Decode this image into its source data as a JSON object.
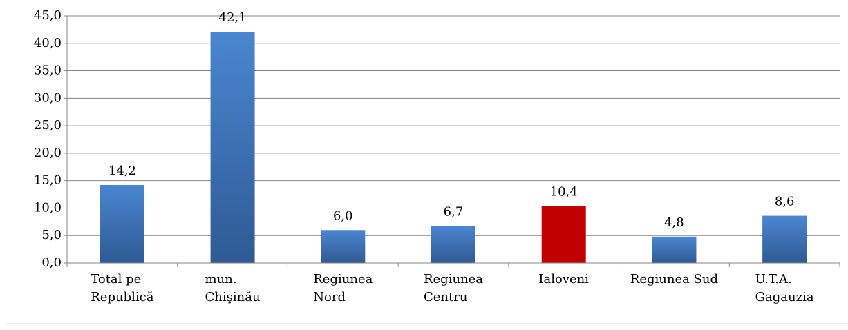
{
  "chart_data": {
    "type": "bar",
    "categories": [
      "Total pe\nRepublică",
      "mun.\nChişinău",
      "Regiunea\nNord",
      "Regiunea\nCentru",
      "Ialoveni",
      "Regiunea Sud",
      "U.T.A.\nGagauzia"
    ],
    "values": [
      14.2,
      42.1,
      6.0,
      6.7,
      10.4,
      4.8,
      8.6
    ],
    "value_labels": [
      "14,2",
      "42,1",
      "6,0",
      "6,7",
      "10,4",
      "4,8",
      "8,6"
    ],
    "colors": [
      "#3d6fb0",
      "#3d6fb0",
      "#3d6fb0",
      "#3d6fb0",
      "#c00000",
      "#3d6fb0",
      "#3d6fb0"
    ],
    "ylim": [
      0,
      45
    ],
    "yticks": [
      {
        "value": 0,
        "label": "0,0"
      },
      {
        "value": 5,
        "label": "5,0"
      },
      {
        "value": 10,
        "label": "10,0"
      },
      {
        "value": 15,
        "label": "15,0"
      },
      {
        "value": 20,
        "label": "20,0"
      },
      {
        "value": 25,
        "label": "25,0"
      },
      {
        "value": 30,
        "label": "30,0"
      },
      {
        "value": 35,
        "label": "35,0"
      },
      {
        "value": 40,
        "label": "40,0"
      },
      {
        "value": 45,
        "label": "45,0"
      }
    ],
    "grid": true
  }
}
